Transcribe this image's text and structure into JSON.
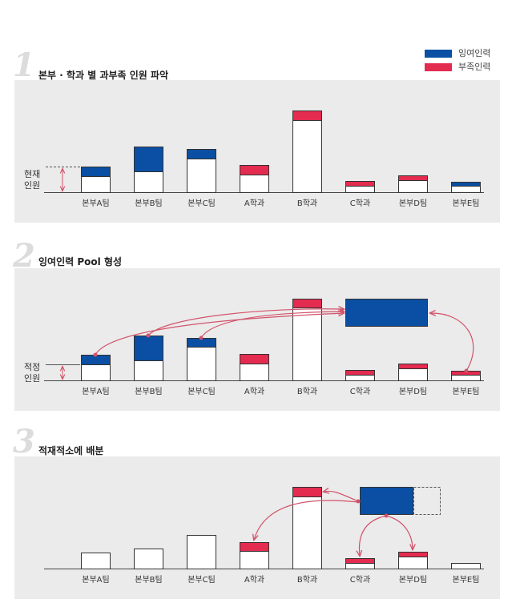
{
  "legend": {
    "surplus_label": "잉여인력",
    "shortage_label": "부족인력",
    "surplus_color": "#0a4fa3",
    "shortage_color": "#e42b50"
  },
  "sections": [
    {
      "number": "1",
      "title": "본부 · 학과 별 과부족 인원 파악",
      "side_label_line1": "현재",
      "side_label_line2": "인원",
      "categories": [
        "본부A팀",
        "본부B팀",
        "본부C팀",
        "A학과",
        "B학과",
        "C학과",
        "본부D팀",
        "본부E팀"
      ]
    },
    {
      "number": "2",
      "title": "잉여인력 Pool 형성",
      "side_label_line1": "적정",
      "side_label_line2": "인원",
      "categories": [
        "본부A팀",
        "본부B팀",
        "본부C팀",
        "A학과",
        "B학과",
        "C학과",
        "본부D팀",
        "본부E팀"
      ]
    },
    {
      "number": "3",
      "title": "적재적소에 배분",
      "categories": [
        "본부A팀",
        "본부B팀",
        "본부C팀",
        "A학과",
        "B학과",
        "C학과",
        "본부D팀",
        "본부E팀"
      ]
    }
  ]
}
